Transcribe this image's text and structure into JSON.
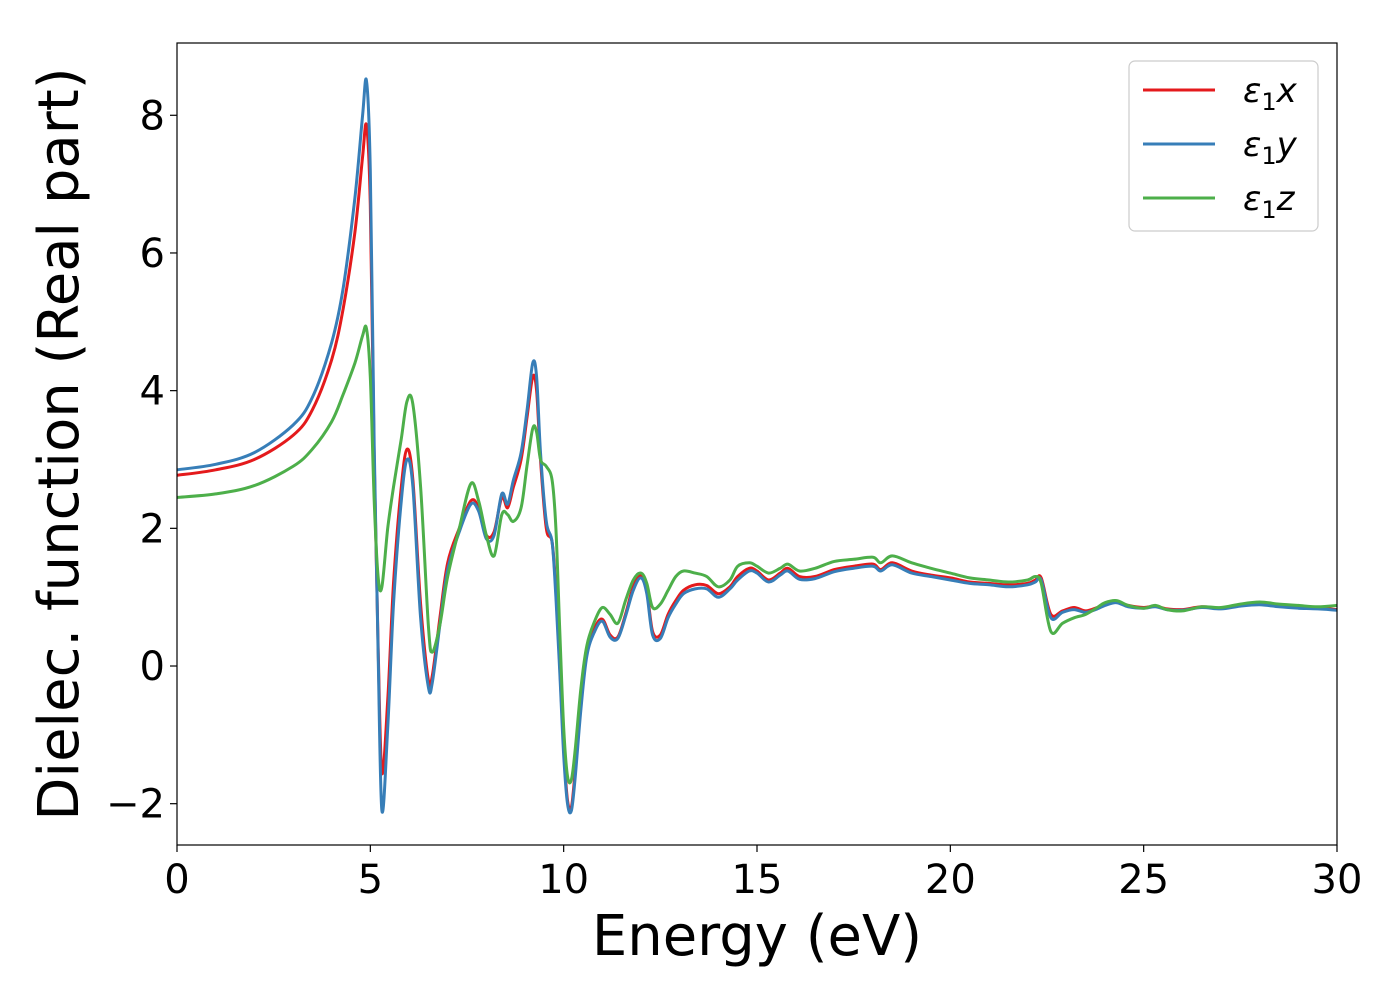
{
  "chart_data": {
    "type": "line",
    "xlabel": "Energy (eV)",
    "ylabel": "Dielec. function (Real part)",
    "xlim": [
      0,
      30
    ],
    "ylim": [
      -2.6,
      9.05
    ],
    "xticks": [
      0,
      5,
      10,
      15,
      20,
      25,
      30
    ],
    "xtick_labels": [
      "0",
      "5",
      "10",
      "15",
      "20",
      "25",
      "30"
    ],
    "yticks": [
      -2,
      0,
      2,
      4,
      6,
      8
    ],
    "ytick_labels": [
      "−2",
      "0",
      "2",
      "4",
      "6",
      "8"
    ],
    "grid": false,
    "legend_position": "top-right",
    "series": [
      {
        "name": "ε1x",
        "legend_base": "ε",
        "legend_sub": "1",
        "legend_suffix": "x",
        "color": "#e41a1c",
        "x": [
          0,
          1,
          2,
          3,
          3.5,
          4,
          4.3,
          4.6,
          4.8,
          4.9,
          5.0,
          5.1,
          5.2,
          5.3,
          5.45,
          5.6,
          5.8,
          5.95,
          6.1,
          6.3,
          6.5,
          6.6,
          6.8,
          7.0,
          7.3,
          7.6,
          7.8,
          8.0,
          8.2,
          8.4,
          8.55,
          8.7,
          8.9,
          9.05,
          9.2,
          9.3,
          9.4,
          9.55,
          9.7,
          9.8,
          9.9,
          10.0,
          10.1,
          10.2,
          10.3,
          10.45,
          10.6,
          10.8,
          11.0,
          11.2,
          11.4,
          11.6,
          11.8,
          12.0,
          12.15,
          12.3,
          12.5,
          12.7,
          12.9,
          13.1,
          13.4,
          13.7,
          14.0,
          14.3,
          14.5,
          14.8,
          15.0,
          15.3,
          15.6,
          15.8,
          16.1,
          16.5,
          17.0,
          17.5,
          18.0,
          18.2,
          18.5,
          19.0,
          19.5,
          20.0,
          20.5,
          21.0,
          21.5,
          22.0,
          22.2,
          22.35,
          22.6,
          22.9,
          23.2,
          23.5,
          23.8,
          24.0,
          24.3,
          24.6,
          25.0,
          25.3,
          25.6,
          26.0,
          26.5,
          27.0,
          27.5,
          28.0,
          28.5,
          29.0,
          29.5,
          30.0
        ],
        "y": [
          2.77,
          2.85,
          3.0,
          3.35,
          3.72,
          4.45,
          5.2,
          6.3,
          7.4,
          7.85,
          6.7,
          3.0,
          0.3,
          -1.55,
          -0.5,
          1.2,
          2.6,
          3.15,
          2.7,
          0.9,
          -0.2,
          -0.15,
          0.7,
          1.5,
          2.0,
          2.4,
          2.3,
          1.9,
          1.95,
          2.45,
          2.3,
          2.6,
          3.0,
          3.6,
          4.2,
          4.0,
          3.0,
          2.0,
          1.8,
          1.1,
          0.0,
          -1.2,
          -1.95,
          -2.05,
          -1.5,
          -0.5,
          0.2,
          0.55,
          0.68,
          0.45,
          0.42,
          0.75,
          1.15,
          1.32,
          1.1,
          0.5,
          0.45,
          0.75,
          0.95,
          1.1,
          1.18,
          1.17,
          1.05,
          1.15,
          1.3,
          1.42,
          1.38,
          1.25,
          1.35,
          1.42,
          1.3,
          1.3,
          1.4,
          1.45,
          1.48,
          1.4,
          1.5,
          1.38,
          1.32,
          1.28,
          1.22,
          1.2,
          1.18,
          1.2,
          1.25,
          1.28,
          0.75,
          0.8,
          0.85,
          0.8,
          0.85,
          0.9,
          0.93,
          0.88,
          0.85,
          0.87,
          0.83,
          0.82,
          0.86,
          0.84,
          0.88,
          0.9,
          0.87,
          0.85,
          0.84,
          0.82
        ]
      },
      {
        "name": "ε1y",
        "legend_base": "ε",
        "legend_sub": "1",
        "legend_suffix": "y",
        "color": "#377eb8",
        "x": [
          0,
          1,
          2,
          3,
          3.5,
          4,
          4.3,
          4.6,
          4.8,
          4.9,
          5.0,
          5.1,
          5.2,
          5.3,
          5.45,
          5.6,
          5.8,
          5.95,
          6.1,
          6.3,
          6.5,
          6.6,
          6.8,
          7.0,
          7.3,
          7.6,
          7.8,
          8.0,
          8.2,
          8.4,
          8.55,
          8.7,
          8.9,
          9.05,
          9.2,
          9.3,
          9.4,
          9.55,
          9.7,
          9.8,
          9.9,
          10.0,
          10.1,
          10.2,
          10.3,
          10.45,
          10.6,
          10.8,
          11.0,
          11.2,
          11.4,
          11.6,
          11.8,
          12.0,
          12.15,
          12.3,
          12.5,
          12.7,
          12.9,
          13.1,
          13.4,
          13.7,
          14.0,
          14.3,
          14.5,
          14.8,
          15.0,
          15.3,
          15.6,
          15.8,
          16.1,
          16.5,
          17.0,
          17.5,
          18.0,
          18.2,
          18.5,
          19.0,
          19.5,
          20.0,
          20.5,
          21.0,
          21.5,
          22.0,
          22.2,
          22.35,
          22.6,
          22.9,
          23.2,
          23.5,
          23.8,
          24.0,
          24.3,
          24.6,
          25.0,
          25.3,
          25.6,
          26.0,
          26.5,
          27.0,
          27.5,
          28.0,
          28.5,
          29.0,
          29.5,
          30.0
        ],
        "y": [
          2.85,
          2.93,
          3.1,
          3.5,
          3.9,
          4.7,
          5.5,
          6.8,
          8.0,
          8.5,
          7.2,
          3.2,
          0.2,
          -2.1,
          -0.9,
          0.9,
          2.4,
          3.0,
          2.6,
          0.7,
          -0.3,
          -0.25,
          0.6,
          1.4,
          1.95,
          2.35,
          2.25,
          1.85,
          1.9,
          2.5,
          2.35,
          2.7,
          3.1,
          3.7,
          4.4,
          4.2,
          3.1,
          2.1,
          1.8,
          1.0,
          -0.1,
          -1.3,
          -2.0,
          -2.1,
          -1.6,
          -0.6,
          0.15,
          0.5,
          0.65,
          0.42,
          0.4,
          0.72,
          1.1,
          1.28,
          1.05,
          0.45,
          0.4,
          0.7,
          0.9,
          1.05,
          1.12,
          1.12,
          1.0,
          1.12,
          1.25,
          1.38,
          1.35,
          1.22,
          1.32,
          1.38,
          1.26,
          1.27,
          1.37,
          1.42,
          1.45,
          1.38,
          1.47,
          1.35,
          1.3,
          1.25,
          1.2,
          1.18,
          1.15,
          1.18,
          1.22,
          1.25,
          0.7,
          0.78,
          0.82,
          0.78,
          0.83,
          0.88,
          0.92,
          0.86,
          0.84,
          0.86,
          0.82,
          0.81,
          0.85,
          0.83,
          0.87,
          0.89,
          0.86,
          0.84,
          0.83,
          0.81
        ]
      },
      {
        "name": "ε1z",
        "legend_base": "ε",
        "legend_sub": "1",
        "legend_suffix": "z",
        "color": "#4daf4a",
        "x": [
          0,
          1,
          2,
          3,
          3.5,
          4,
          4.3,
          4.6,
          4.8,
          4.9,
          5.0,
          5.1,
          5.2,
          5.3,
          5.45,
          5.6,
          5.8,
          5.95,
          6.1,
          6.3,
          6.5,
          6.6,
          6.8,
          7.0,
          7.3,
          7.6,
          7.8,
          8.0,
          8.2,
          8.4,
          8.55,
          8.7,
          8.9,
          9.05,
          9.2,
          9.3,
          9.4,
          9.55,
          9.7,
          9.8,
          9.9,
          10.0,
          10.1,
          10.2,
          10.3,
          10.45,
          10.6,
          10.8,
          11.0,
          11.2,
          11.4,
          11.6,
          11.8,
          12.0,
          12.15,
          12.3,
          12.5,
          12.7,
          12.9,
          13.1,
          13.4,
          13.7,
          14.0,
          14.3,
          14.5,
          14.8,
          15.0,
          15.3,
          15.6,
          15.8,
          16.1,
          16.5,
          17.0,
          17.5,
          18.0,
          18.2,
          18.5,
          19.0,
          19.5,
          20.0,
          20.5,
          21.0,
          21.5,
          22.0,
          22.2,
          22.35,
          22.6,
          22.9,
          23.2,
          23.5,
          23.8,
          24.0,
          24.3,
          24.6,
          25.0,
          25.3,
          25.6,
          26.0,
          26.5,
          27.0,
          27.5,
          28.0,
          28.5,
          29.0,
          29.5,
          30.0
        ],
        "y": [
          2.45,
          2.5,
          2.62,
          2.9,
          3.15,
          3.55,
          3.95,
          4.4,
          4.8,
          4.9,
          4.2,
          2.4,
          1.3,
          1.15,
          2.0,
          2.6,
          3.3,
          3.85,
          3.8,
          2.6,
          0.6,
          0.2,
          0.6,
          1.3,
          2.0,
          2.65,
          2.4,
          1.9,
          1.6,
          2.2,
          2.2,
          2.1,
          2.3,
          2.9,
          3.45,
          3.4,
          3.0,
          2.9,
          2.7,
          2.0,
          0.5,
          -0.9,
          -1.6,
          -1.65,
          -1.2,
          -0.3,
          0.3,
          0.65,
          0.85,
          0.75,
          0.62,
          0.95,
          1.25,
          1.35,
          1.2,
          0.85,
          0.9,
          1.1,
          1.3,
          1.38,
          1.35,
          1.3,
          1.15,
          1.25,
          1.45,
          1.5,
          1.45,
          1.35,
          1.42,
          1.48,
          1.38,
          1.42,
          1.52,
          1.55,
          1.58,
          1.5,
          1.6,
          1.5,
          1.42,
          1.35,
          1.28,
          1.25,
          1.22,
          1.25,
          1.3,
          1.2,
          0.5,
          0.62,
          0.7,
          0.75,
          0.85,
          0.92,
          0.95,
          0.88,
          0.84,
          0.88,
          0.82,
          0.8,
          0.86,
          0.85,
          0.9,
          0.93,
          0.9,
          0.88,
          0.86,
          0.88
        ]
      }
    ]
  }
}
